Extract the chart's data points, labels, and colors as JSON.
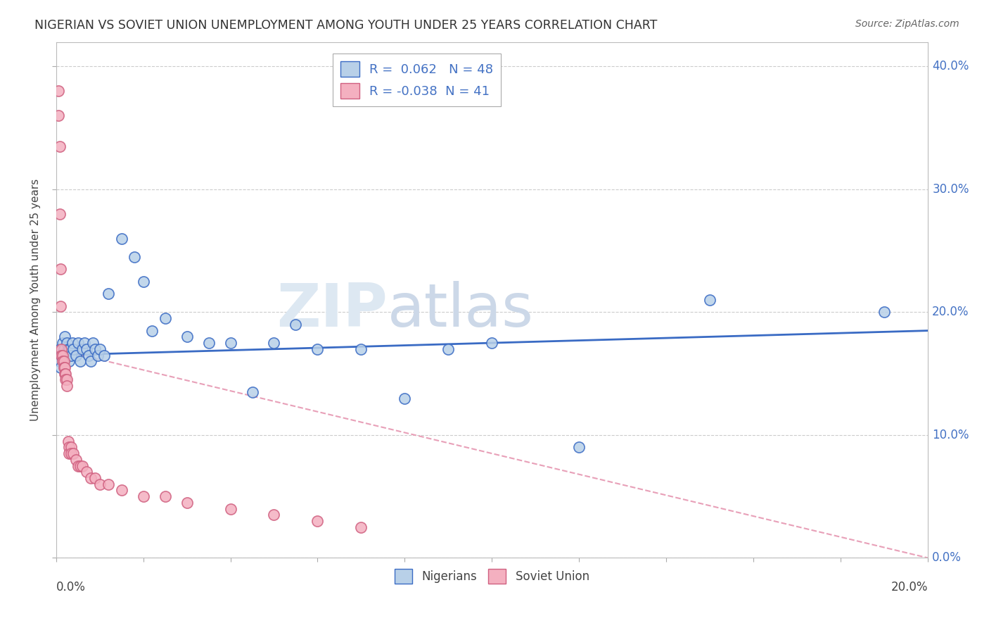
{
  "title": "NIGERIAN VS SOVIET UNION UNEMPLOYMENT AMONG YOUTH UNDER 25 YEARS CORRELATION CHART",
  "source": "Source: ZipAtlas.com",
  "ylabel": "Unemployment Among Youth under 25 years",
  "yticks": [
    "0.0%",
    "10.0%",
    "20.0%",
    "30.0%",
    "40.0%"
  ],
  "ytick_vals": [
    0,
    10,
    20,
    30,
    40
  ],
  "xlim": [
    0,
    20
  ],
  "ylim": [
    0,
    42
  ],
  "r_nigerian": 0.062,
  "n_nigerian": 48,
  "r_soviet": -0.038,
  "n_soviet": 41,
  "nigerian_color": "#b8d0e8",
  "soviet_color": "#f4b0c0",
  "nigerian_line_color": "#3a6bc4",
  "soviet_line_color": "#f0b8c8",
  "nigerian_scatter_x": [
    0.08,
    0.08,
    0.1,
    0.12,
    0.15,
    0.18,
    0.2,
    0.22,
    0.25,
    0.28,
    0.3,
    0.32,
    0.35,
    0.38,
    0.4,
    0.45,
    0.5,
    0.55,
    0.6,
    0.65,
    0.7,
    0.75,
    0.8,
    0.85,
    0.9,
    0.95,
    1.0,
    1.1,
    1.2,
    1.5,
    1.8,
    2.0,
    2.2,
    2.5,
    3.0,
    3.5,
    4.0,
    4.5,
    5.0,
    5.5,
    6.0,
    7.0,
    8.0,
    9.0,
    10.0,
    12.0,
    15.0,
    19.0
  ],
  "nigerian_scatter_y": [
    17.0,
    16.0,
    15.5,
    16.5,
    17.5,
    17.0,
    18.0,
    16.5,
    17.5,
    17.0,
    16.0,
    17.0,
    16.5,
    17.5,
    17.0,
    16.5,
    17.5,
    16.0,
    17.0,
    17.5,
    17.0,
    16.5,
    16.0,
    17.5,
    17.0,
    16.5,
    17.0,
    16.5,
    21.5,
    26.0,
    24.5,
    22.5,
    18.5,
    19.5,
    18.0,
    17.5,
    17.5,
    13.5,
    17.5,
    19.0,
    17.0,
    17.0,
    13.0,
    17.0,
    17.5,
    9.0,
    21.0,
    20.0
  ],
  "soviet_scatter_x": [
    0.05,
    0.05,
    0.08,
    0.08,
    0.1,
    0.1,
    0.12,
    0.12,
    0.15,
    0.15,
    0.18,
    0.18,
    0.2,
    0.2,
    0.22,
    0.22,
    0.25,
    0.25,
    0.28,
    0.3,
    0.3,
    0.35,
    0.35,
    0.4,
    0.45,
    0.5,
    0.55,
    0.6,
    0.7,
    0.8,
    0.9,
    1.0,
    1.2,
    1.5,
    2.0,
    2.5,
    3.0,
    4.0,
    5.0,
    6.0,
    7.0
  ],
  "soviet_scatter_y": [
    38.0,
    36.0,
    33.5,
    28.0,
    23.5,
    20.5,
    17.0,
    16.5,
    16.5,
    16.0,
    16.0,
    15.5,
    15.5,
    15.0,
    15.0,
    14.5,
    14.5,
    14.0,
    9.5,
    9.0,
    8.5,
    9.0,
    8.5,
    8.5,
    8.0,
    7.5,
    7.5,
    7.5,
    7.0,
    6.5,
    6.5,
    6.0,
    6.0,
    5.5,
    5.0,
    5.0,
    4.5,
    4.0,
    3.5,
    3.0,
    2.5
  ],
  "nigerian_trendline_y0": 16.5,
  "nigerian_trendline_y1": 18.5,
  "soviet_trendline_y0": 17.0,
  "soviet_trendline_y1": 0.0
}
